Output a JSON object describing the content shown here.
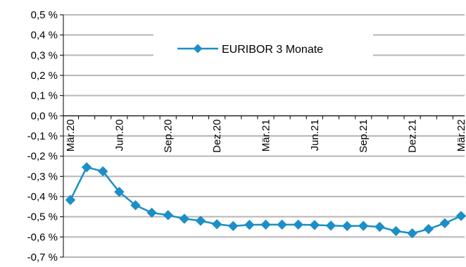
{
  "chart_data": {
    "type": "line",
    "title": "",
    "xlabel": "",
    "ylabel": "",
    "ylim": [
      -0.7,
      0.5
    ],
    "y_ticks": [
      "0,5 %",
      "0,4 %",
      "0,3 %",
      "0,2 %",
      "0,1 %",
      "0,0 %",
      "-0,1 %",
      "-0,2 %",
      "-0,3 %",
      "-0,4 %",
      "-0,5 %",
      "-0,6 %",
      "-0,7 %"
    ],
    "x_tick_labels": [
      "Mär.20",
      "Jun.20",
      "Sep.20",
      "Dez.20",
      "Mär.21",
      "Jun.21",
      "Sep.21",
      "Dez.21",
      "Mär.22"
    ],
    "x": [
      "Mär.20",
      "Apr.20",
      "Mai.20",
      "Jun.20",
      "Jul.20",
      "Aug.20",
      "Sep.20",
      "Okt.20",
      "Nov.20",
      "Dez.20",
      "Jan.21",
      "Feb.21",
      "Mär.21",
      "Apr.21",
      "Mai.21",
      "Jun.21",
      "Jul.21",
      "Aug.21",
      "Sep.21",
      "Okt.21",
      "Nov.21",
      "Dez.21",
      "Jan.22",
      "Feb.22",
      "Mär.22"
    ],
    "series": [
      {
        "name": "EURIBOR 3 Monate",
        "color": "#1b8fc6",
        "marker": "diamond",
        "values": [
          -0.417,
          -0.255,
          -0.275,
          -0.377,
          -0.443,
          -0.48,
          -0.492,
          -0.51,
          -0.52,
          -0.537,
          -0.546,
          -0.54,
          -0.539,
          -0.539,
          -0.539,
          -0.541,
          -0.544,
          -0.546,
          -0.545,
          -0.55,
          -0.571,
          -0.582,
          -0.561,
          -0.532,
          -0.496
        ]
      }
    ],
    "grid": "horizontal",
    "legend_position": "top-center"
  }
}
